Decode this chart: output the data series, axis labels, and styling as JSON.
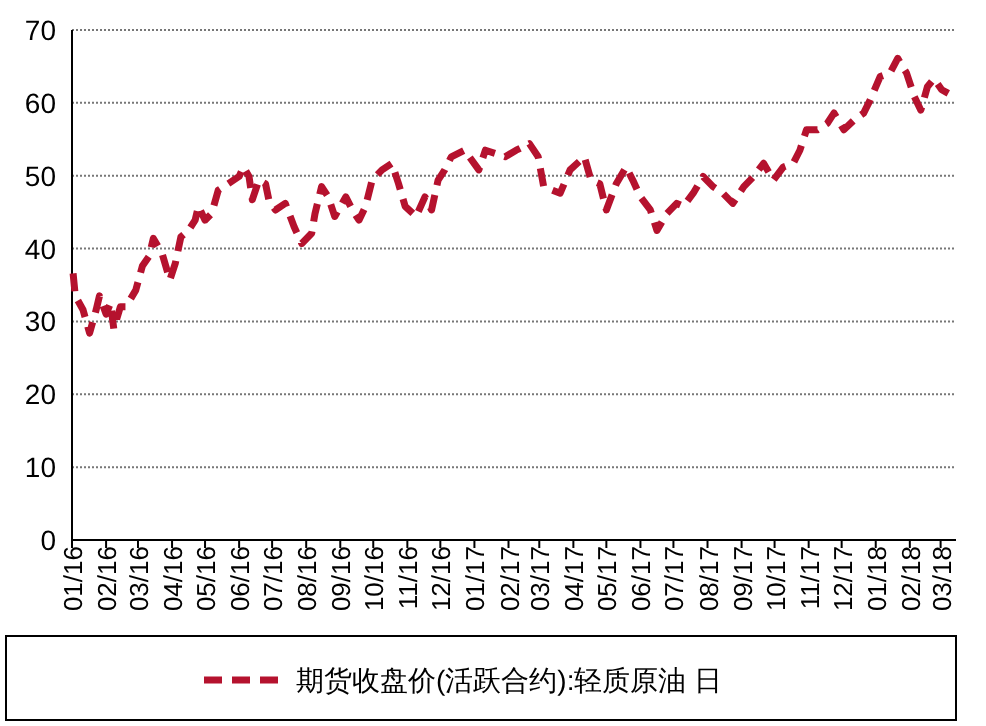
{
  "chart_data": {
    "type": "line",
    "x": [
      "2016-01-02",
      "2016-01-04",
      "2016-01-11",
      "2016-01-17",
      "2016-01-23",
      "2016-01-26",
      "2016-02-01",
      "2016-02-05",
      "2016-02-08",
      "2016-02-14",
      "2016-02-19",
      "2016-02-28",
      "2016-03-05",
      "2016-03-11",
      "2016-03-15",
      "2016-03-23",
      "2016-03-30",
      "2016-04-04",
      "2016-04-09",
      "2016-04-16",
      "2016-04-22",
      "2016-04-25",
      "2016-05-01",
      "2016-05-07",
      "2016-05-13",
      "2016-05-22",
      "2016-06-01",
      "2016-06-05",
      "2016-06-10",
      "2016-06-13",
      "2016-06-19",
      "2016-06-25",
      "2016-06-28",
      "2016-07-04",
      "2016-07-13",
      "2016-07-21",
      "2016-07-28",
      "2016-08-06",
      "2016-08-09",
      "2016-08-15",
      "2016-08-21",
      "2016-08-27",
      "2016-09-06",
      "2016-09-12",
      "2016-09-18",
      "2016-09-24",
      "2016-09-30",
      "2016-10-09",
      "2016-10-18",
      "2016-10-24",
      "2016-10-30",
      "2016-11-09",
      "2016-11-17",
      "2016-11-23",
      "2016-11-29",
      "2016-12-05",
      "2016-12-11",
      "2016-12-23",
      "2017-01-05",
      "2017-01-11",
      "2017-01-29",
      "2017-02-08",
      "2017-02-20",
      "2017-02-28",
      "2017-03-05",
      "2017-03-20",
      "2017-03-29",
      "2017-04-11",
      "2017-04-17",
      "2017-04-25",
      "2017-05-01",
      "2017-05-10",
      "2017-05-19",
      "2017-05-25",
      "2017-06-01",
      "2017-06-10",
      "2017-06-16",
      "2017-06-25",
      "2017-07-04",
      "2017-07-10",
      "2017-07-19",
      "2017-07-28",
      "2017-08-06",
      "2017-08-15",
      "2017-08-24",
      "2017-09-03",
      "2017-09-12",
      "2017-09-21",
      "2017-09-30",
      "2017-10-09",
      "2017-10-18",
      "2017-10-24",
      "2017-10-30",
      "2017-11-09",
      "2017-11-18",
      "2017-11-24",
      "2017-12-03",
      "2017-12-12",
      "2017-12-21",
      "2017-12-27",
      "2018-01-05",
      "2018-01-14",
      "2018-01-21",
      "2018-01-29",
      "2018-02-05",
      "2018-02-11",
      "2018-02-17",
      "2018-02-23",
      "2018-03-02",
      "2018-03-08"
    ],
    "series": [
      {
        "name": "期货收盘价(活跃合约):轻质原油 日",
        "color": "#b5122e",
        "values": [
          36.6,
          33.5,
          31.6,
          28.4,
          31.6,
          33.5,
          31.0,
          32.5,
          29.0,
          32.0,
          32.0,
          34.3,
          37.6,
          38.9,
          41.4,
          39.3,
          35.7,
          38.0,
          41.6,
          42.5,
          43.9,
          45.8,
          43.9,
          44.8,
          48.0,
          48.9,
          49.9,
          51.2,
          49.9,
          46.7,
          49.4,
          48.9,
          46.7,
          45.3,
          46.2,
          43.0,
          40.7,
          42.1,
          44.8,
          48.5,
          47.1,
          44.4,
          47.1,
          45.3,
          43.9,
          45.8,
          49.4,
          50.8,
          51.7,
          48.9,
          45.8,
          44.4,
          47.1,
          45.3,
          49.4,
          50.8,
          52.6,
          53.5,
          50.8,
          53.5,
          52.6,
          53.5,
          54.4,
          52.6,
          48.5,
          47.6,
          50.8,
          52.6,
          49.4,
          48.9,
          45.3,
          48.9,
          51.2,
          49.4,
          47.1,
          45.3,
          42.5,
          44.8,
          46.2,
          45.8,
          47.6,
          49.9,
          48.5,
          47.6,
          46.2,
          48.5,
          49.9,
          51.7,
          49.4,
          51.2,
          51.7,
          53.5,
          56.3,
          56.3,
          57.2,
          58.6,
          56.3,
          57.6,
          58.6,
          60.4,
          63.6,
          64.1,
          66.1,
          64.1,
          60.9,
          59.0,
          62.2,
          63.3,
          61.8,
          61.3
        ]
      }
    ],
    "xlim": [
      "2016-01-01",
      "2018-03-15"
    ],
    "xticks": [
      {
        "value": "2016-01-01",
        "label": "01/16"
      },
      {
        "value": "2016-02-01",
        "label": "02/16"
      },
      {
        "value": "2016-03-01",
        "label": "03/16"
      },
      {
        "value": "2016-04-01",
        "label": "04/16"
      },
      {
        "value": "2016-05-01",
        "label": "05/16"
      },
      {
        "value": "2016-06-01",
        "label": "06/16"
      },
      {
        "value": "2016-07-01",
        "label": "07/16"
      },
      {
        "value": "2016-08-01",
        "label": "08/16"
      },
      {
        "value": "2016-09-01",
        "label": "09/16"
      },
      {
        "value": "2016-10-01",
        "label": "10/16"
      },
      {
        "value": "2016-11-01",
        "label": "11/16"
      },
      {
        "value": "2016-12-01",
        "label": "12/16"
      },
      {
        "value": "2017-01-01",
        "label": "01/17"
      },
      {
        "value": "2017-02-01",
        "label": "02/17"
      },
      {
        "value": "2017-03-01",
        "label": "03/17"
      },
      {
        "value": "2017-04-01",
        "label": "04/17"
      },
      {
        "value": "2017-05-01",
        "label": "05/17"
      },
      {
        "value": "2017-06-01",
        "label": "06/17"
      },
      {
        "value": "2017-07-01",
        "label": "07/17"
      },
      {
        "value": "2017-08-01",
        "label": "08/17"
      },
      {
        "value": "2017-09-01",
        "label": "09/17"
      },
      {
        "value": "2017-10-01",
        "label": "10/17"
      },
      {
        "value": "2017-11-01",
        "label": "11/17"
      },
      {
        "value": "2017-12-01",
        "label": "12/17"
      },
      {
        "value": "2018-01-01",
        "label": "01/18"
      },
      {
        "value": "2018-02-01",
        "label": "02/18"
      },
      {
        "value": "2018-03-01",
        "label": "03/18"
      }
    ],
    "ylim": [
      0,
      70
    ],
    "yticks": [
      0,
      10,
      20,
      30,
      40,
      50,
      60,
      70
    ],
    "grid": "y",
    "legend": "bottom",
    "line_style": "dashed"
  }
}
